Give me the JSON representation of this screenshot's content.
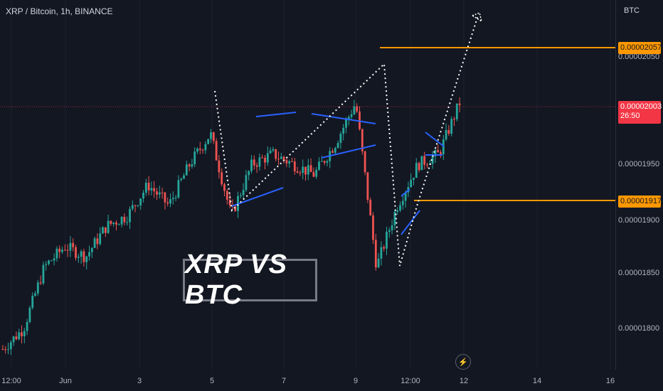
{
  "header": {
    "symbol_title": "XRP / Bitcoin, 1h, BINANCE",
    "currency": "BTC"
  },
  "overlay_text": "XRP VS BTC",
  "colors": {
    "up": "#26a69a",
    "down": "#ef5350",
    "pattern": "#2962ff",
    "level": "#ff9800",
    "current": "#f23645",
    "path": "#ffffff"
  },
  "price_axis": {
    "ticks": [
      "0.00002050",
      "0.00001950",
      "0.00001900",
      "0.00001850",
      "0.00001800"
    ],
    "level_badges": [
      "0.00002057",
      "0.00001917"
    ],
    "current_price": "0.00002003",
    "countdown": "26:50"
  },
  "time_axis": {
    "ticks": [
      "12:00",
      "Jun",
      "3",
      "5",
      "7",
      "9",
      "12:00",
      "12",
      "14",
      "16"
    ]
  },
  "chart_data": {
    "type": "candlestick",
    "title": "XRP / Bitcoin, 1h, BINANCE",
    "timeframe": "1h",
    "ylim": [
      1.77e-05,
      2.13e-05
    ],
    "price_path": [
      [
        1.79e-05,
        1.79e-05
      ],
      [
        1.81e-05,
        1.88e-05
      ],
      [
        1.87e-05,
        1.9e-05
      ],
      [
        1.89e-05,
        1.87e-05
      ],
      [
        1.88e-05,
        1.9e-05
      ],
      [
        1.91e-05,
        1.89e-05
      ],
      [
        1.92e-05,
        1.94e-05
      ],
      [
        1.95e-05,
        1.93e-05
      ],
      [
        1.93e-05,
        1.95e-05
      ],
      [
        1.97e-05,
        2.01e-05
      ],
      [
        2e-05,
        1.97e-05
      ],
      [
        1.92e-05,
        1.96e-05
      ],
      [
        1.97e-05,
        1.95e-05
      ],
      [
        1.98e-05,
        1.93e-05
      ],
      [
        1.97e-05,
        1.97e-05
      ],
      [
        1.96e-05,
        1.98e-05
      ],
      [
        1.99e-05,
        2.05e-05
      ],
      [
        2.03e-05,
        1.91e-05
      ],
      [
        1.87e-05,
        1.9e-05
      ],
      [
        1.93e-05,
        1.96e-05
      ],
      [
        1.97e-05,
        1.97e-05
      ],
      [
        1.98e-05,
        2.01e-05
      ],
      [
        2.03e-05,
        2e-05
      ]
    ],
    "horizontal_levels": [
      2.057e-05,
      1.917e-05
    ],
    "current_price": 2.003e-05
  }
}
